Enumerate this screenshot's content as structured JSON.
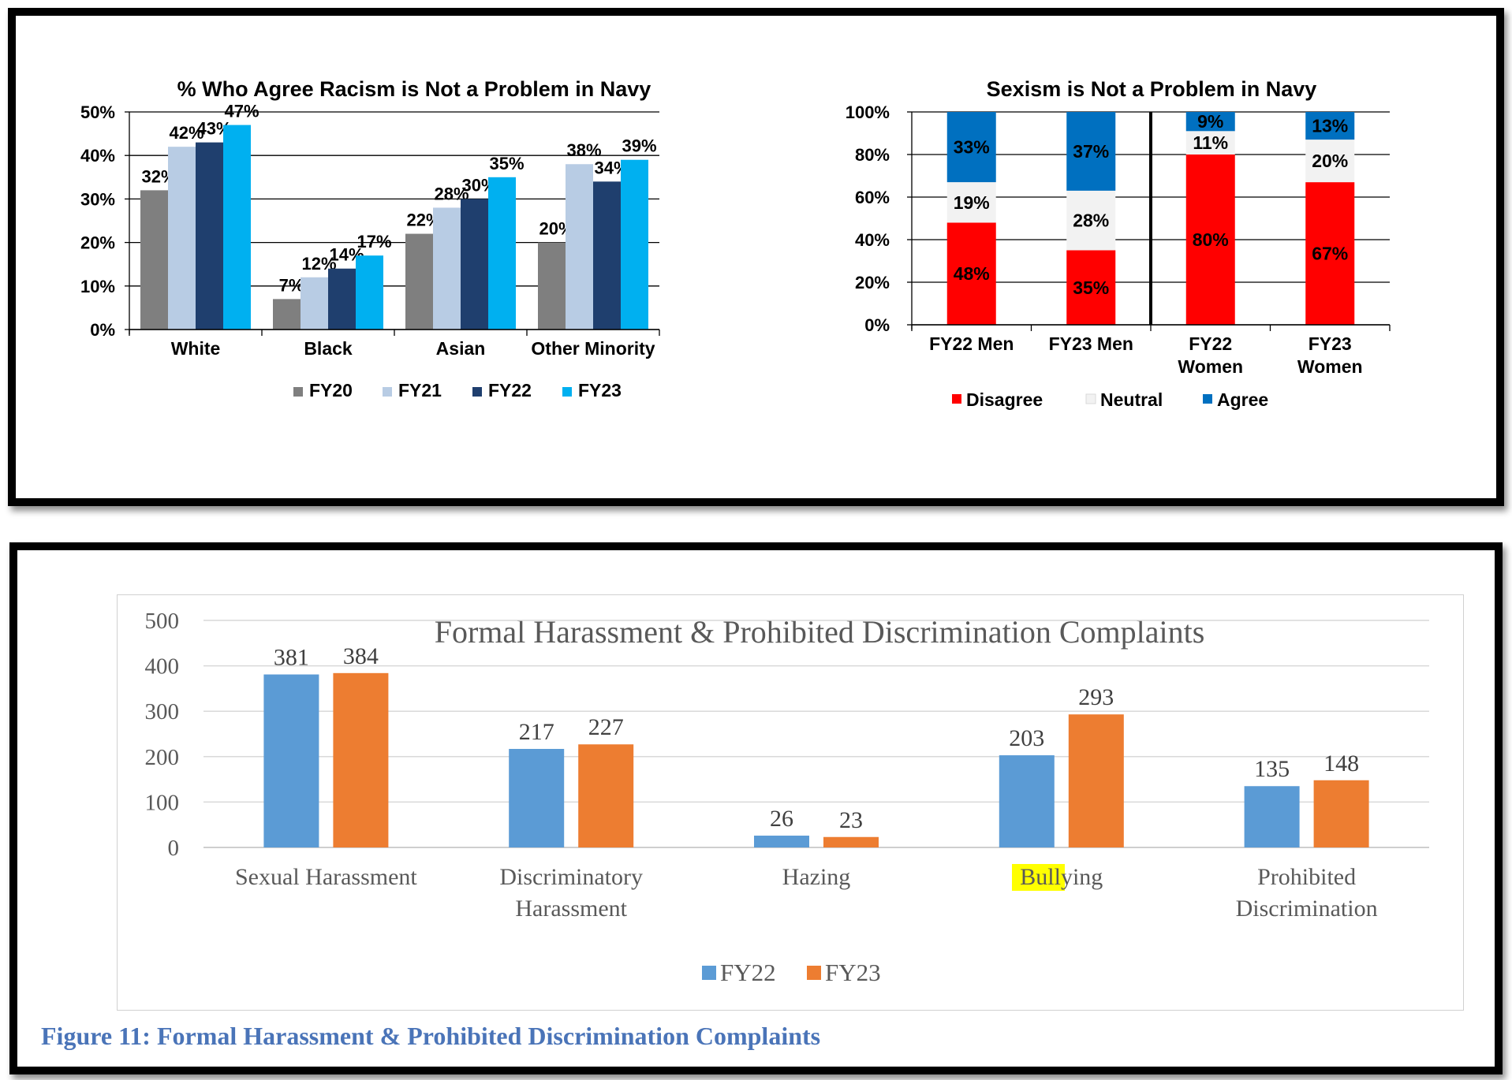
{
  "racism_chart": {
    "type": "bar",
    "title": "% Who Agree Racism is Not a Problem in Navy",
    "categories": [
      "White",
      "Black",
      "Asian",
      "Other Minority"
    ],
    "series": [
      {
        "name": "FY20",
        "color": "#7f7f7f",
        "values": [
          32,
          7,
          22,
          20
        ],
        "labels": [
          "32%",
          "7%",
          "22%",
          "20%"
        ]
      },
      {
        "name": "FY21",
        "color": "#b8cce4",
        "values": [
          42,
          12,
          28,
          38
        ],
        "labels": [
          "42%",
          "12%",
          "28%",
          "38%"
        ]
      },
      {
        "name": "FY22",
        "color": "#1f3f6e",
        "values": [
          43,
          14,
          30,
          34
        ],
        "labels": [
          "43%",
          "14%",
          "30%",
          "34%"
        ]
      },
      {
        "name": "FY23",
        "color": "#00b0f0",
        "values": [
          47,
          17,
          35,
          39
        ],
        "labels": [
          "47%",
          "17%",
          "35%",
          "39%"
        ]
      }
    ],
    "ylim": [
      0,
      50
    ],
    "yticks": [
      "0%",
      "10%",
      "20%",
      "30%",
      "40%",
      "50%"
    ],
    "grid": true,
    "legend": "bottom"
  },
  "sexism_chart": {
    "type": "bar",
    "stacked": true,
    "title": "Sexism is Not a Problem in Navy",
    "categories": [
      [
        "FY22 Men"
      ],
      [
        "FY23 Men"
      ],
      [
        "FY22",
        "Women"
      ],
      [
        "FY23",
        "Women"
      ]
    ],
    "series": [
      {
        "name": "Disagree",
        "color": "#ff0000",
        "values": [
          48,
          35,
          80,
          67
        ],
        "labels": [
          "48%",
          "35%",
          "80%",
          "67%"
        ]
      },
      {
        "name": "Neutral",
        "color": "#f2f2f2",
        "values": [
          19,
          28,
          11,
          20
        ],
        "labels": [
          "19%",
          "28%",
          "11%",
          "20%"
        ]
      },
      {
        "name": "Agree",
        "color": "#0070c0",
        "values": [
          33,
          37,
          9,
          13
        ],
        "labels": [
          "33%",
          "37%",
          "9%",
          "13%"
        ]
      }
    ],
    "ylim": [
      0,
      100
    ],
    "yticks": [
      "0%",
      "20%",
      "40%",
      "60%",
      "80%",
      "100%"
    ],
    "grid": true,
    "legend": "bottom"
  },
  "complaints_chart": {
    "type": "bar",
    "title": "Formal Harassment & Prohibited Discrimination Complaints",
    "categories": [
      [
        "Sexual Harassment"
      ],
      [
        "Discriminatory",
        "Harassment"
      ],
      [
        "Hazing"
      ],
      [
        "Bullying"
      ],
      [
        "Prohibited",
        "Discrimination"
      ]
    ],
    "series": [
      {
        "name": "FY22",
        "color": "#5b9bd5",
        "values": [
          381,
          217,
          26,
          203,
          135
        ]
      },
      {
        "name": "FY23",
        "color": "#ed7d31",
        "values": [
          384,
          227,
          23,
          293,
          148
        ]
      }
    ],
    "ylim": [
      0,
      500
    ],
    "yticks": [
      "0",
      "100",
      "200",
      "300",
      "400",
      "500"
    ],
    "highlight_text": "Bully",
    "grid": true,
    "legend": "bottom"
  },
  "figure_caption": "Figure 11: Formal Harassment & Prohibited Discrimination Complaints"
}
